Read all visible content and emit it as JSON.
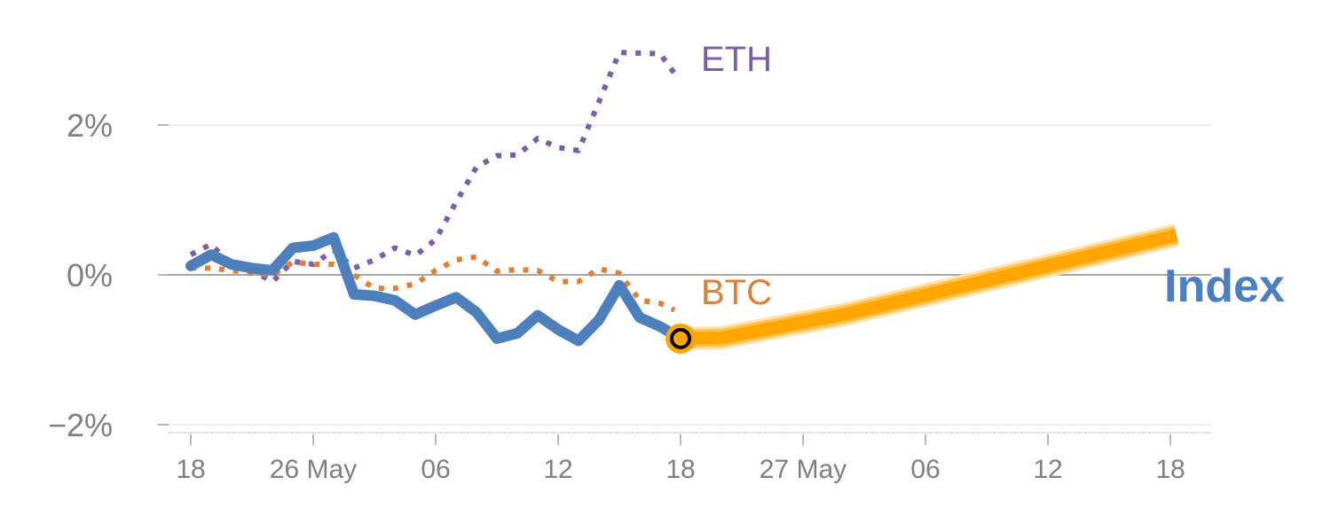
{
  "chart_data": {
    "type": "line",
    "title": "",
    "xlabel": "",
    "ylabel": "",
    "ylim": [
      -2,
      3.2
    ],
    "xlim": [
      -1,
      50
    ],
    "grid": true,
    "x_ticks": [
      {
        "x": 0,
        "label": "18"
      },
      {
        "x": 6,
        "label": "26 May"
      },
      {
        "x": 12,
        "label": "06"
      },
      {
        "x": 18,
        "label": "12"
      },
      {
        "x": 24,
        "label": "18"
      },
      {
        "x": 30,
        "label": "27 May"
      },
      {
        "x": 36,
        "label": "06"
      },
      {
        "x": 42,
        "label": "12"
      },
      {
        "x": 48,
        "label": "18"
      }
    ],
    "y_ticks": [
      {
        "y": 2,
        "label": "2%"
      },
      {
        "y": 0,
        "label": "0%"
      },
      {
        "y": -2,
        "label": "−2%"
      }
    ],
    "series": [
      {
        "name": "ETH",
        "label": "ETH",
        "color": "#7b5ea7",
        "style": "dotted",
        "x": [
          0,
          1,
          2,
          3,
          4,
          5,
          6,
          7,
          8,
          9,
          10,
          11,
          12,
          13,
          14,
          15,
          16,
          17,
          18,
          19,
          20,
          21,
          22,
          23,
          23.7
        ],
        "values": [
          0.27,
          0.41,
          0.12,
          0.06,
          -0.09,
          0.18,
          0.14,
          0.33,
          0.09,
          0.2,
          0.36,
          0.26,
          0.47,
          0.97,
          1.44,
          1.59,
          1.6,
          1.82,
          1.7,
          1.66,
          2.31,
          2.97,
          2.96,
          2.95,
          2.69
        ]
      },
      {
        "name": "BTC",
        "label": "BTC",
        "color": "#e07f34",
        "style": "dotted",
        "x": [
          0,
          1,
          2,
          3,
          4,
          5,
          6,
          7,
          8,
          9,
          10,
          11,
          12,
          13,
          14,
          15,
          16,
          17,
          18,
          19,
          20,
          21,
          22,
          23,
          23.7
        ],
        "values": [
          0.09,
          0.09,
          0.06,
          0.02,
          0,
          0.17,
          0.14,
          0.14,
          0,
          -0.18,
          -0.18,
          -0.12,
          0.06,
          0.2,
          0.24,
          0.05,
          0.07,
          0.06,
          -0.09,
          -0.09,
          0.08,
          0.02,
          -0.34,
          -0.38,
          -0.47
        ]
      },
      {
        "name": "Index",
        "label": "Index",
        "color": "#4e7fbd",
        "style": "solid",
        "x": [
          0,
          1,
          2,
          3,
          4,
          5,
          6,
          7,
          8,
          9,
          10,
          11,
          12,
          13,
          14,
          15,
          16,
          17,
          18,
          19,
          20,
          21,
          22,
          23,
          24
        ],
        "values": [
          0.12,
          0.27,
          0.14,
          0.09,
          0.06,
          0.36,
          0.39,
          0.5,
          -0.26,
          -0.28,
          -0.34,
          -0.53,
          -0.41,
          -0.3,
          -0.5,
          -0.85,
          -0.78,
          -0.54,
          -0.73,
          -0.88,
          -0.6,
          -0.14,
          -0.57,
          -0.69,
          -0.85
        ]
      },
      {
        "name": "Index forecast",
        "color": "#ffa500",
        "style": "forecast",
        "x": [
          24,
          26,
          32,
          48.3
        ],
        "values": [
          -0.85,
          -0.84,
          -0.53,
          0.53
        ]
      }
    ],
    "marker": {
      "x": 24,
      "y": -0.85
    }
  }
}
